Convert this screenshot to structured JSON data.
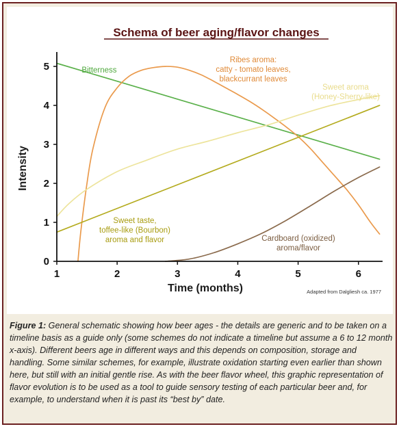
{
  "chart_data": {
    "type": "line",
    "title": "Schema of beer aging/flavor changes",
    "xlabel": "Time (months)",
    "ylabel": "Intensity",
    "xlim": [
      1,
      6.4
    ],
    "ylim": [
      0,
      5.3
    ],
    "xticks": [
      "1",
      "2",
      "3",
      "4",
      "5",
      "6"
    ],
    "yticks": [
      "0",
      "1",
      "2",
      "3",
      "4",
      "5"
    ],
    "grid": false,
    "legend": "none",
    "source_note": "Adapted from Dalgliesh ca. 1977",
    "series": [
      {
        "name": "Bitterness",
        "label_lines": [
          "Bitterness"
        ],
        "color": "#5ab04a",
        "x": [
          1.0,
          6.35
        ],
        "y": [
          5.08,
          2.62
        ]
      },
      {
        "name": "Ribes aroma: catty - tomato leaves, blackcurrant leaves",
        "label_lines": [
          "Ribes aroma:",
          "catty - tomato leaves,",
          "blackcurrant leaves"
        ],
        "color": "#ea9a4c",
        "x": [
          1.35,
          1.4,
          1.5,
          1.6,
          1.8,
          2.0,
          2.2,
          2.4,
          2.6,
          2.8,
          3.0,
          3.2,
          3.4,
          3.6,
          3.8,
          4.0,
          4.2,
          4.4,
          4.6,
          4.8,
          5.0,
          5.2,
          5.4,
          5.6,
          5.8,
          6.0,
          6.2,
          6.35
        ],
        "y": [
          0.0,
          0.8,
          2.0,
          2.9,
          3.95,
          4.45,
          4.75,
          4.9,
          4.97,
          5.0,
          4.98,
          4.9,
          4.78,
          4.62,
          4.45,
          4.28,
          4.1,
          3.9,
          3.68,
          3.45,
          3.2,
          2.9,
          2.55,
          2.2,
          1.85,
          1.45,
          1.0,
          0.7
        ]
      },
      {
        "name": "Sweet aroma (Honey-Sherry-like)",
        "label_lines": [
          "Sweet aroma",
          "(Honey-Sherry-like)"
        ],
        "color": "#ede49c",
        "x": [
          1.0,
          1.2,
          1.5,
          2.0,
          2.5,
          3.0,
          3.5,
          4.0,
          4.5,
          5.0,
          5.5,
          6.0,
          6.35
        ],
        "y": [
          1.15,
          1.48,
          1.85,
          2.3,
          2.6,
          2.88,
          3.08,
          3.3,
          3.5,
          3.75,
          3.98,
          4.15,
          4.25
        ]
      },
      {
        "name": "Sweet taste, toffee-like (Bourbon) aroma and flavor",
        "label_lines": [
          "Sweet taste,",
          "toffee-like (Bourbon)",
          "aroma and flavor"
        ],
        "color": "#b4ab1e",
        "x": [
          1.0,
          6.35
        ],
        "y": [
          0.75,
          4.0
        ]
      },
      {
        "name": "Cardboard (oxidized) aroma/flavor",
        "label_lines": [
          "Cardboard (oxidized)",
          "aroma/flavor"
        ],
        "color": "#8a6a4c",
        "x": [
          2.8,
          3.2,
          3.6,
          4.0,
          4.4,
          4.8,
          5.2,
          5.6,
          6.0,
          6.35
        ],
        "y": [
          0.0,
          0.06,
          0.22,
          0.45,
          0.72,
          1.05,
          1.42,
          1.8,
          2.15,
          2.42
        ]
      }
    ]
  },
  "caption": {
    "label": "Figure 1:",
    "text": " General schematic showing how beer ages - the details are generic and to be taken on a timeline basis as a guide only (some schemes do not indicate a timeline but assume a 6 to 12 month x-axis). Different beers age in different ways and this depends on composition, storage and handling. Some similar schemes, for example, illustrate oxidation starting even earlier than shown here, but still with an initial gentle rise. As with the beer flavor wheel, this graphic representation of flavor evolution is to be used as a tool to guide sensory testing of each particular beer and, for example, to understand when it is past its “best by” date."
  }
}
